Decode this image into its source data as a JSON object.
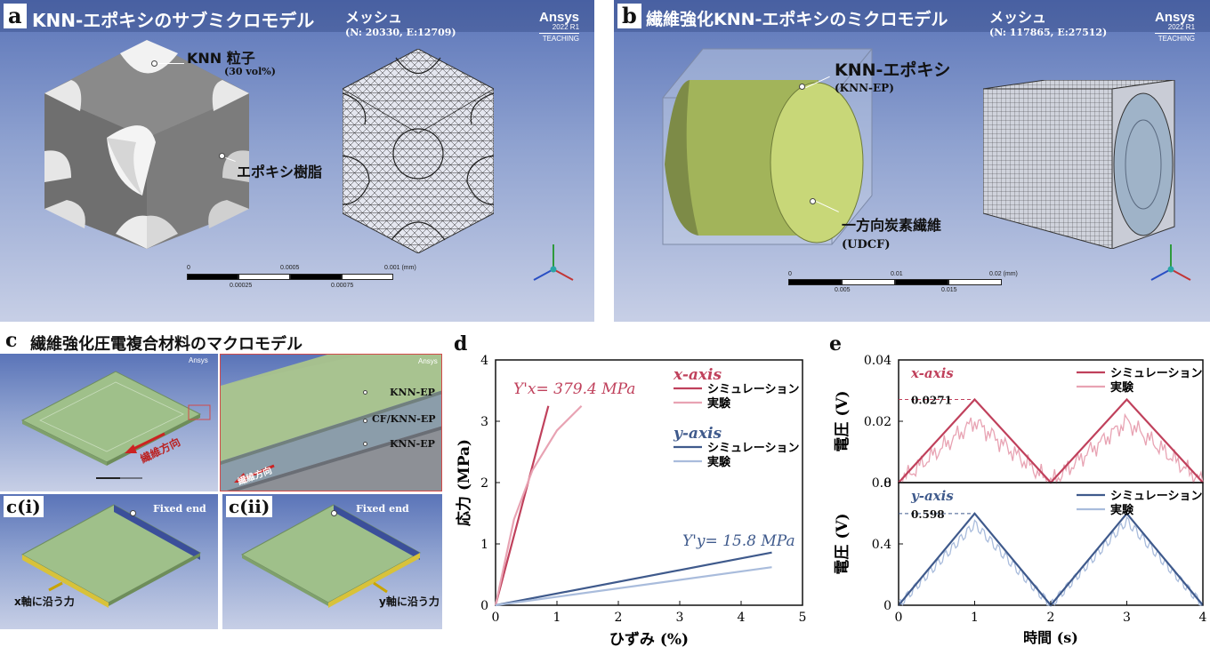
{
  "panel_a": {
    "letter": "a",
    "title": "KNN-エポキシのサブミクロモデル",
    "mesh_title": "メッシュ",
    "mesh_info": "(N: 20330, E:12709)",
    "label_particle": "KNN 粒子",
    "label_particle_sub": "(30 vol%)",
    "label_epoxy": "エポキシ樹脂",
    "scale_top": [
      "0",
      "0.0005",
      "0.001 (mm)"
    ],
    "scale_bottom": [
      "0.00025",
      "0.00075"
    ]
  },
  "panel_b": {
    "letter": "b",
    "title": "繊維強化KNN-エポキシのミクロモデル",
    "mesh_title": "メッシュ",
    "mesh_info": "(N: 117865, E:27512)",
    "label_matrix": "KNN-エポキシ",
    "label_matrix_sub": "(KNN-EP)",
    "label_fiber": "一方向炭素繊維",
    "label_fiber_sub": "(UDCF)",
    "scale_top": [
      "0",
      "0.01",
      "0.02 (mm)"
    ],
    "scale_bottom": [
      "0.005",
      "0.015"
    ]
  },
  "ansys": {
    "name": "Ansys",
    "version": "2022 R1",
    "edition": "TEACHING"
  },
  "panel_c": {
    "letter": "c",
    "title": "繊維強化圧電複合材料のマクロモデル",
    "fiber_dir": "繊維方向",
    "layers": [
      "KNN-EP",
      "CF/KNN-EP",
      "KNN-EP"
    ],
    "sub_i": "c(i)",
    "sub_ii": "c(ii)",
    "fixed_end": "Fixed end",
    "force_x": "x軸に沿う力",
    "force_y": "y軸に沿う力"
  },
  "panel_d": {
    "letter": "d",
    "xlabel": "ひずみ (%)",
    "ylabel": "応力 (MPa)",
    "legend_x_title": "x-axis",
    "legend_y_title": "y-axis",
    "legend_sim": "シミュレーション",
    "legend_exp": "実験",
    "annot_x": "Y'x= 379.4 MPa",
    "annot_y": "Y'y= 15.8 MPa",
    "xticks": [
      "0",
      "1",
      "2",
      "3",
      "4",
      "5"
    ],
    "yticks": [
      "0",
      "1",
      "2",
      "3",
      "4"
    ]
  },
  "panel_e": {
    "letter": "e",
    "xlabel": "時間 (s)",
    "ylabel": "電圧 (V)",
    "top_title": "x-axis",
    "bottom_title": "y-axis",
    "legend_sim": "シミュレーション",
    "legend_exp": "実験",
    "top_peak": "0.0271",
    "bottom_peak": "0.598",
    "xticks": [
      "0",
      "1",
      "2",
      "3",
      "4"
    ],
    "top_yticks": [
      "0",
      "0.02",
      "0.04"
    ],
    "bottom_yticks": [
      "0",
      "0.4",
      "0.8"
    ]
  },
  "colors": {
    "x_sim": "#c0415c",
    "x_exp": "#e8a3b3",
    "y_sim": "#3f5a8c",
    "y_exp": "#a9bcdc",
    "epoxy": "#7c7c7c",
    "fiber": "#b5c46a",
    "plate": "#9fc08a"
  },
  "chart_data": [
    {
      "type": "line",
      "panel": "d",
      "xlabel": "ひずみ (%)",
      "ylabel": "応力 (MPa)",
      "xlim": [
        0,
        5
      ],
      "ylim": [
        0,
        4
      ],
      "series": [
        {
          "name": "x-axis シミュレーション",
          "x": [
            0,
            0.86
          ],
          "y": [
            0,
            3.25
          ]
        },
        {
          "name": "x-axis 実験",
          "x": [
            0,
            0.3,
            0.6,
            1.0,
            1.4
          ],
          "y": [
            0,
            1.4,
            2.2,
            2.85,
            3.25
          ]
        },
        {
          "name": "y-axis シミュレーション",
          "x": [
            0,
            4.5
          ],
          "y": [
            0,
            0.86
          ]
        },
        {
          "name": "y-axis 実験",
          "x": [
            0,
            4.5
          ],
          "y": [
            0,
            0.62
          ]
        }
      ]
    },
    {
      "type": "line",
      "panel": "e-top",
      "xlabel": "時間 (s)",
      "ylabel": "電圧 (V)",
      "xlim": [
        0,
        4
      ],
      "ylim": [
        0,
        0.04
      ],
      "series": [
        {
          "name": "x-axis シミュレーション",
          "x": [
            0,
            1,
            2,
            3,
            4
          ],
          "y": [
            0,
            0.0271,
            0,
            0.0271,
            0
          ]
        },
        {
          "name": "x-axis 実験",
          "x": [
            0,
            1,
            2,
            3,
            4
          ],
          "y": [
            0,
            0.02,
            0,
            0.02,
            0
          ]
        }
      ]
    },
    {
      "type": "line",
      "panel": "e-bottom",
      "xlabel": "時間 (s)",
      "ylabel": "電圧 (V)",
      "xlim": [
        0,
        4
      ],
      "ylim": [
        0,
        0.8
      ],
      "series": [
        {
          "name": "y-axis シミュレーション",
          "x": [
            0,
            1,
            2,
            3,
            4
          ],
          "y": [
            0,
            0.598,
            0,
            0.598,
            0
          ]
        },
        {
          "name": "y-axis 実験",
          "x": [
            0,
            1,
            2,
            3,
            4
          ],
          "y": [
            0,
            0.53,
            0,
            0.55,
            0
          ]
        }
      ]
    }
  ]
}
